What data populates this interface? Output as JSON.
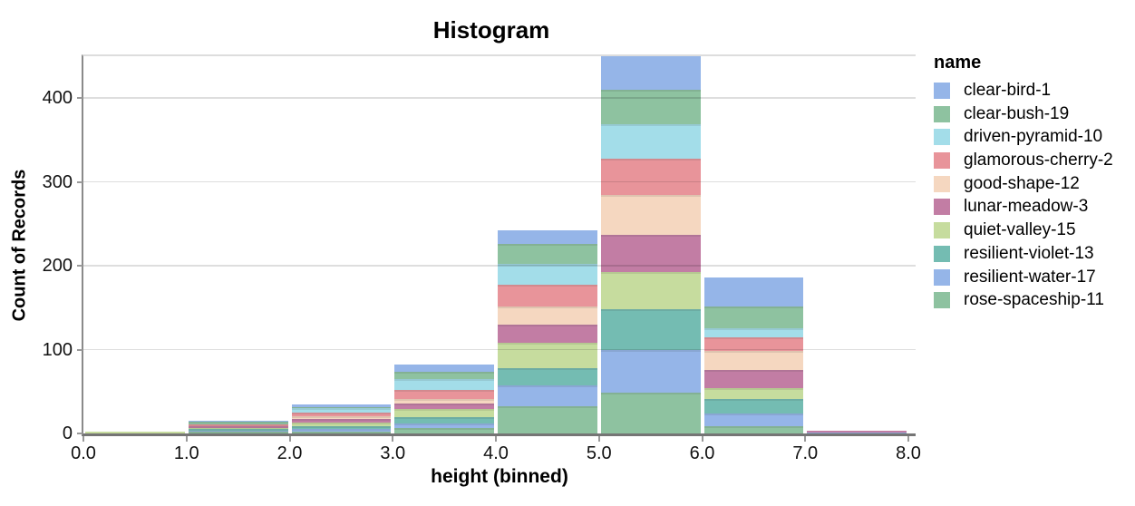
{
  "chart": {
    "title": "Histogram",
    "x_axis": {
      "title": "height (binned)",
      "tick_labels": [
        "0.0",
        "1.0",
        "2.0",
        "3.0",
        "4.0",
        "5.0",
        "6.0",
        "7.0",
        "8.0"
      ],
      "min": 0,
      "max": 8
    },
    "y_axis": {
      "title": "Count of Records",
      "tick_values": [
        0,
        100,
        200,
        300,
        400
      ],
      "max": 450
    },
    "legend": {
      "title": "name"
    }
  },
  "chart_data": {
    "type": "bar",
    "subtype": "stacked-histogram",
    "title": "Histogram",
    "xlabel": "height (binned)",
    "ylabel": "Count of Records",
    "xlim": [
      0,
      8
    ],
    "ylim": [
      0,
      450
    ],
    "grid": true,
    "legend_position": "right",
    "bin_edges": [
      0,
      1,
      2,
      3,
      4,
      5,
      6,
      7,
      8
    ],
    "bin_totals": [
      2,
      15,
      35,
      82,
      242,
      450,
      186,
      3
    ],
    "stack_order": "alphabetical-top-to-bottom",
    "series": [
      {
        "name": "clear-bird-1",
        "color": "#95b5e8",
        "values": [
          0,
          1,
          4,
          8,
          16,
          40,
          35,
          0
        ]
      },
      {
        "name": "clear-bush-19",
        "color": "#8ec2a0",
        "values": [
          0,
          3,
          1,
          9,
          24,
          41,
          26,
          0
        ]
      },
      {
        "name": "driven-pyramid-10",
        "color": "#a3dde9",
        "values": [
          0,
          0,
          5,
          13,
          25,
          41,
          10,
          0
        ]
      },
      {
        "name": "glamorous-cherry-2",
        "color": "#e8949a",
        "values": [
          0,
          2,
          4,
          11,
          25,
          44,
          17,
          0
        ]
      },
      {
        "name": "good-shape-12",
        "color": "#f5d7c0",
        "values": [
          0,
          0,
          4,
          5,
          22,
          47,
          22,
          0
        ]
      },
      {
        "name": "lunar-meadow-3",
        "color": "#c27da4",
        "values": [
          0,
          2,
          4,
          7,
          22,
          44,
          22,
          2
        ]
      },
      {
        "name": "quiet-valley-15",
        "color": "#c6dc9e",
        "values": [
          2,
          2,
          4,
          9,
          30,
          45,
          13,
          0
        ]
      },
      {
        "name": "resilient-violet-13",
        "color": "#74bcb2",
        "values": [
          0,
          2,
          4,
          8,
          21,
          49,
          17,
          0
        ]
      },
      {
        "name": "resilient-water-17",
        "color": "#95b5e8",
        "values": [
          0,
          1,
          3,
          6,
          25,
          50,
          15,
          1
        ]
      },
      {
        "name": "rose-spaceship-11",
        "color": "#8ec2a0",
        "values": [
          0,
          2,
          2,
          6,
          32,
          49,
          9,
          0
        ]
      }
    ]
  }
}
